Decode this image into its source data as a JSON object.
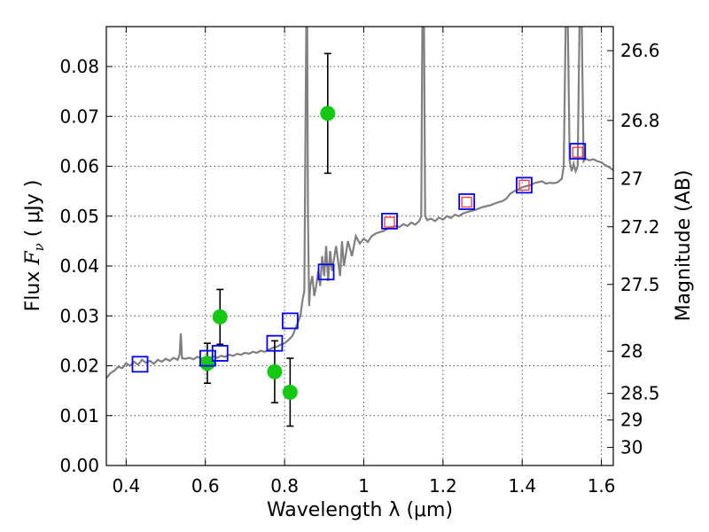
{
  "chart_data": {
    "type": "scatter",
    "x_axis": {
      "label": "Wavelength  λ (μm)",
      "range": [
        0.35,
        1.63
      ],
      "ticks": [
        0.4,
        0.6,
        0.8,
        1.0,
        1.2,
        1.4,
        1.6
      ],
      "tick_labels": [
        "0.4",
        "0.6",
        "0.8",
        "1",
        "1.2",
        "1.4",
        "1.6"
      ]
    },
    "y_axis": {
      "label_prefix": "Flux ",
      "label_symbol": "F",
      "label_subscript": "ν",
      "label_suffix": "  ( μJy )",
      "range": [
        0.0,
        0.088
      ],
      "ticks": [
        0.0,
        0.01,
        0.02,
        0.03,
        0.04,
        0.05,
        0.06,
        0.07,
        0.08
      ],
      "tick_labels": [
        "0.00",
        "0.01",
        "0.02",
        "0.03",
        "0.04",
        "0.05",
        "0.06",
        "0.07",
        "0.08"
      ]
    },
    "y2_axis": {
      "label": "Magnitude (AB)",
      "ticks": [
        26.6,
        26.8,
        27.0,
        27.2,
        27.5,
        28.0,
        28.5,
        29.0,
        30.0
      ],
      "tick_labels": [
        "26.6",
        "26.8",
        "27",
        "27.2",
        "27.5",
        "28",
        "28.5",
        "29",
        "30"
      ],
      "zero_point": 23.9
    },
    "grid": true,
    "series": [
      {
        "name": "model spectrum",
        "kind": "line",
        "color": "#808080",
        "points": [
          [
            0.35,
            0.0175
          ],
          [
            0.36,
            0.0185
          ],
          [
            0.37,
            0.019
          ],
          [
            0.38,
            0.0198
          ],
          [
            0.39,
            0.0195
          ],
          [
            0.4,
            0.0205
          ],
          [
            0.41,
            0.02
          ],
          [
            0.42,
            0.0208
          ],
          [
            0.43,
            0.0202
          ],
          [
            0.44,
            0.0212
          ],
          [
            0.45,
            0.0206
          ],
          [
            0.46,
            0.021
          ],
          [
            0.47,
            0.0204
          ],
          [
            0.48,
            0.0212
          ],
          [
            0.49,
            0.0208
          ],
          [
            0.5,
            0.0214
          ],
          [
            0.51,
            0.021
          ],
          [
            0.52,
            0.0216
          ],
          [
            0.53,
            0.0212
          ],
          [
            0.535,
            0.0222
          ],
          [
            0.538,
            0.0265
          ],
          [
            0.541,
            0.0215
          ],
          [
            0.55,
            0.0214
          ],
          [
            0.56,
            0.0216
          ],
          [
            0.57,
            0.0213
          ],
          [
            0.58,
            0.0218
          ],
          [
            0.59,
            0.0214
          ],
          [
            0.6,
            0.0218
          ],
          [
            0.61,
            0.0215
          ],
          [
            0.62,
            0.0219
          ],
          [
            0.63,
            0.0216
          ],
          [
            0.64,
            0.022
          ],
          [
            0.65,
            0.0218
          ],
          [
            0.66,
            0.0222
          ],
          [
            0.67,
            0.022
          ],
          [
            0.68,
            0.0224
          ],
          [
            0.69,
            0.0222
          ],
          [
            0.7,
            0.0226
          ],
          [
            0.71,
            0.0224
          ],
          [
            0.72,
            0.0228
          ],
          [
            0.73,
            0.0226
          ],
          [
            0.74,
            0.023
          ],
          [
            0.75,
            0.0228
          ],
          [
            0.76,
            0.0232
          ],
          [
            0.77,
            0.0236
          ],
          [
            0.78,
            0.0238
          ],
          [
            0.79,
            0.0242
          ],
          [
            0.8,
            0.0245
          ],
          [
            0.81,
            0.0252
          ],
          [
            0.82,
            0.026
          ],
          [
            0.83,
            0.028
          ],
          [
            0.84,
            0.03
          ],
          [
            0.845,
            0.033
          ],
          [
            0.85,
            0.035
          ],
          [
            0.853,
            0.07
          ],
          [
            0.855,
            0.09
          ],
          [
            0.857,
            0.09
          ],
          [
            0.859,
            0.05
          ],
          [
            0.862,
            0.032
          ],
          [
            0.865,
            0.036
          ],
          [
            0.87,
            0.038
          ],
          [
            0.875,
            0.034
          ],
          [
            0.88,
            0.036
          ],
          [
            0.885,
            0.039
          ],
          [
            0.89,
            0.036
          ],
          [
            0.895,
            0.042
          ],
          [
            0.9,
            0.038
          ],
          [
            0.905,
            0.044
          ],
          [
            0.91,
            0.037
          ],
          [
            0.915,
            0.043
          ],
          [
            0.92,
            0.039
          ],
          [
            0.93,
            0.044
          ],
          [
            0.94,
            0.038
          ],
          [
            0.945,
            0.045
          ],
          [
            0.95,
            0.04
          ],
          [
            0.96,
            0.045
          ],
          [
            0.97,
            0.042
          ],
          [
            0.98,
            0.046
          ],
          [
            0.99,
            0.0445
          ],
          [
            1.0,
            0.0455
          ],
          [
            1.01,
            0.0448
          ],
          [
            1.02,
            0.046
          ],
          [
            1.03,
            0.0465
          ],
          [
            1.04,
            0.0468
          ],
          [
            1.05,
            0.047
          ],
          [
            1.06,
            0.0475
          ],
          [
            1.07,
            0.0478
          ],
          [
            1.08,
            0.048
          ],
          [
            1.09,
            0.0478
          ],
          [
            1.1,
            0.0484
          ],
          [
            1.11,
            0.048
          ],
          [
            1.12,
            0.0487
          ],
          [
            1.13,
            0.0483
          ],
          [
            1.14,
            0.049
          ],
          [
            1.145,
            0.05
          ],
          [
            1.148,
            0.09
          ],
          [
            1.152,
            0.09
          ],
          [
            1.155,
            0.05
          ],
          [
            1.16,
            0.0492
          ],
          [
            1.17,
            0.0495
          ],
          [
            1.18,
            0.049
          ],
          [
            1.19,
            0.0497
          ],
          [
            1.2,
            0.0493
          ],
          [
            1.21,
            0.05
          ],
          [
            1.22,
            0.0496
          ],
          [
            1.23,
            0.0503
          ],
          [
            1.24,
            0.05
          ],
          [
            1.25,
            0.0505
          ],
          [
            1.26,
            0.0508
          ],
          [
            1.27,
            0.051
          ],
          [
            1.28,
            0.0512
          ],
          [
            1.29,
            0.0515
          ],
          [
            1.3,
            0.0518
          ],
          [
            1.31,
            0.052
          ],
          [
            1.32,
            0.0522
          ],
          [
            1.33,
            0.0525
          ],
          [
            1.34,
            0.0528
          ],
          [
            1.35,
            0.053
          ],
          [
            1.36,
            0.0535
          ],
          [
            1.37,
            0.0545
          ],
          [
            1.38,
            0.055
          ],
          [
            1.39,
            0.0553
          ],
          [
            1.4,
            0.0558
          ],
          [
            1.41,
            0.056
          ],
          [
            1.42,
            0.0562
          ],
          [
            1.43,
            0.0566
          ],
          [
            1.44,
            0.0568
          ],
          [
            1.45,
            0.057
          ],
          [
            1.46,
            0.0565
          ],
          [
            1.47,
            0.0567
          ],
          [
            1.48,
            0.0566
          ],
          [
            1.49,
            0.0568
          ],
          [
            1.5,
            0.0575
          ],
          [
            1.505,
            0.06
          ],
          [
            1.51,
            0.09
          ],
          [
            1.515,
            0.09
          ],
          [
            1.52,
            0.061
          ],
          [
            1.525,
            0.059
          ],
          [
            1.53,
            0.0605
          ],
          [
            1.535,
            0.059
          ],
          [
            1.54,
            0.06
          ],
          [
            1.545,
            0.09
          ],
          [
            1.55,
            0.09
          ],
          [
            1.555,
            0.061
          ],
          [
            1.56,
            0.0615
          ],
          [
            1.57,
            0.0612
          ],
          [
            1.58,
            0.0614
          ],
          [
            1.59,
            0.061
          ],
          [
            1.6,
            0.0608
          ],
          [
            1.61,
            0.0602
          ],
          [
            1.62,
            0.0598
          ],
          [
            1.63,
            0.0592
          ]
        ]
      },
      {
        "name": "observed photometry",
        "kind": "points-with-errorbars",
        "color": "#14c814",
        "points": [
          {
            "x": 0.605,
            "y": 0.0205,
            "err": 0.004
          },
          {
            "x": 0.637,
            "y": 0.0298,
            "err": 0.0055
          },
          {
            "x": 0.775,
            "y": 0.0188,
            "err": 0.0062
          },
          {
            "x": 0.814,
            "y": 0.0147,
            "err": 0.0068
          },
          {
            "x": 0.909,
            "y": 0.0706,
            "err": 0.012
          }
        ]
      },
      {
        "name": "model band fluxes",
        "kind": "open-squares",
        "color": "#0000ff",
        "points": [
          {
            "x": 0.435,
            "y": 0.0203
          },
          {
            "x": 0.606,
            "y": 0.0215
          },
          {
            "x": 0.637,
            "y": 0.0225
          },
          {
            "x": 0.775,
            "y": 0.0245
          },
          {
            "x": 0.814,
            "y": 0.029
          },
          {
            "x": 0.905,
            "y": 0.0388
          },
          {
            "x": 1.065,
            "y": 0.049
          },
          {
            "x": 1.26,
            "y": 0.0529
          },
          {
            "x": 1.405,
            "y": 0.0562
          },
          {
            "x": 1.54,
            "y": 0.063
          }
        ]
      },
      {
        "name": "observed NIR band fluxes",
        "kind": "open-squares-small",
        "color": "#ff4040",
        "points": [
          {
            "x": 1.065,
            "y": 0.0488
          },
          {
            "x": 1.26,
            "y": 0.0528
          },
          {
            "x": 1.405,
            "y": 0.0562
          },
          {
            "x": 1.54,
            "y": 0.0628
          }
        ]
      }
    ]
  }
}
